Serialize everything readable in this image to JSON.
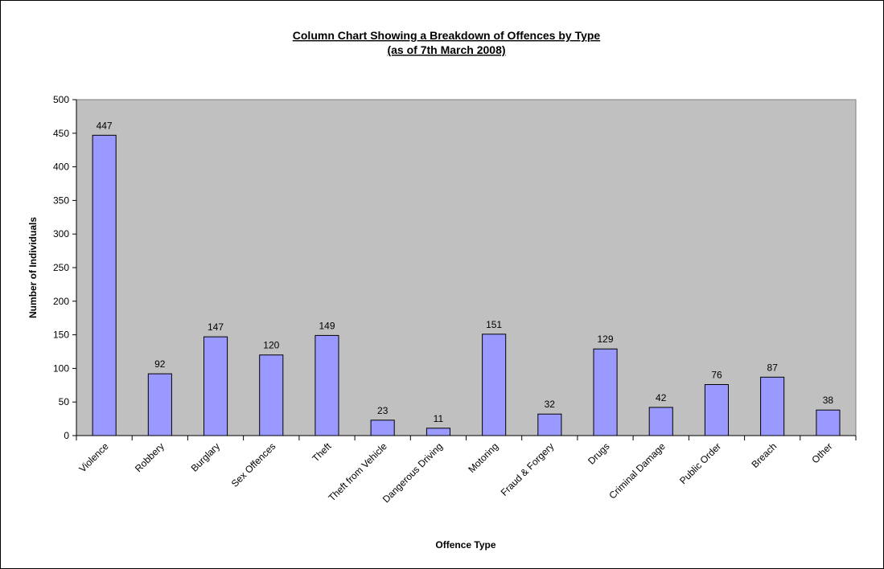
{
  "colors": {
    "plot_background": "#C0C0C0",
    "bar_fill": "#9999FF",
    "bar_stroke": "#000000"
  },
  "chart_data": {
    "type": "bar",
    "title": "Column Chart Showing a Breakdown of Offences by Type",
    "subtitle": "(as of 7th March 2008)",
    "xlabel": "Offence Type",
    "ylabel": "Number of Individuals",
    "ylim": [
      0,
      500
    ],
    "yticks": [
      "0",
      "50",
      "100",
      "150",
      "200",
      "250",
      "300",
      "350",
      "400",
      "450",
      "500"
    ],
    "categories": [
      "Violence",
      "Robbery",
      "Burglary",
      "Sex Offences",
      "Theft",
      "Theft from Vehicle",
      "Dangerous Driving",
      "Motoring",
      "Fraud & Forgery",
      "Drugs",
      "Criminal Damage",
      "Public Order",
      "Breach",
      "Other"
    ],
    "values": [
      447,
      92,
      147,
      120,
      149,
      23,
      11,
      151,
      32,
      129,
      42,
      76,
      87,
      38
    ],
    "data_labels": [
      "447",
      "92",
      "147",
      "120",
      "149",
      "23",
      "11",
      "151",
      "32",
      "129",
      "42",
      "76",
      "87",
      "38"
    ],
    "grid": false,
    "legend": "none"
  }
}
